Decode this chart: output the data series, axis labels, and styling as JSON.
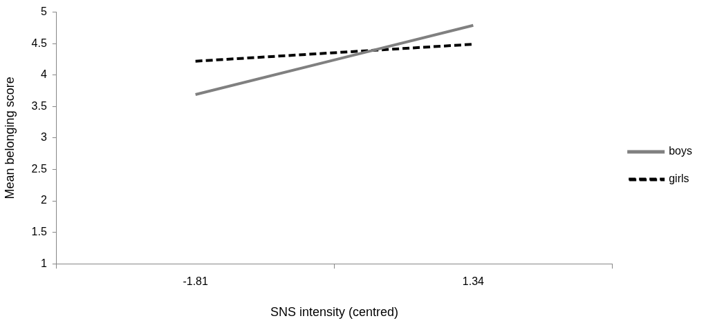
{
  "chart_data": {
    "type": "line",
    "xlabel": "SNS intensity (centred)",
    "ylabel": "Mean belonging score",
    "categories": [
      "-1.81",
      "1.34"
    ],
    "series": [
      {
        "name": "boys",
        "color": "#808080",
        "values": [
          3.69,
          4.79
        ],
        "line_style": "solid"
      },
      {
        "name": "girls",
        "color": "#000000",
        "values": [
          4.22,
          4.49
        ],
        "line_style": "dashed"
      }
    ],
    "ylim": [
      1,
      5
    ],
    "yticks": [
      1,
      1.5,
      2,
      2.5,
      3,
      3.5,
      4,
      4.5,
      5
    ],
    "grid": false,
    "legend": "right",
    "marker": "none"
  }
}
